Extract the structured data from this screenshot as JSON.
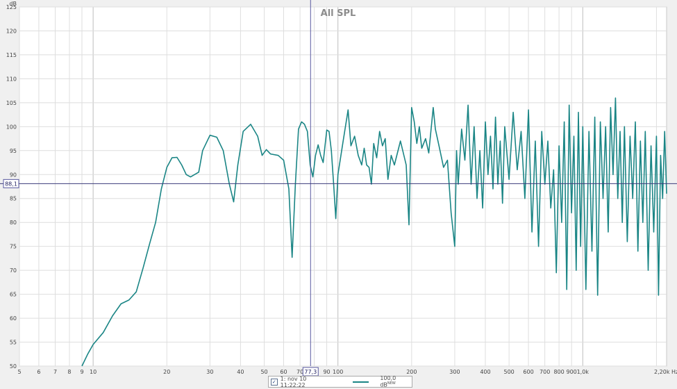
{
  "chart_data": {
    "type": "line",
    "title": "All SPL",
    "x_scale": "log",
    "xlabel": "Hz",
    "ylabel": "dB",
    "xlim": [
      5,
      2200
    ],
    "ylim": [
      50,
      125
    ],
    "grid": true,
    "x_ticks": [
      {
        "value": 5,
        "label": "5"
      },
      {
        "value": 6,
        "label": "6"
      },
      {
        "value": 7,
        "label": "7"
      },
      {
        "value": 8,
        "label": "8"
      },
      {
        "value": 9,
        "label": "9"
      },
      {
        "value": 10,
        "label": "10"
      },
      {
        "value": 20,
        "label": "20"
      },
      {
        "value": 30,
        "label": "30"
      },
      {
        "value": 40,
        "label": "40"
      },
      {
        "value": 50,
        "label": "50"
      },
      {
        "value": 60,
        "label": "60"
      },
      {
        "value": 70,
        "label": "70"
      },
      {
        "value": 90,
        "label": "90"
      },
      {
        "value": 100,
        "label": "100"
      },
      {
        "value": 200,
        "label": "200"
      },
      {
        "value": 300,
        "label": "300"
      },
      {
        "value": 400,
        "label": "400"
      },
      {
        "value": 500,
        "label": "500"
      },
      {
        "value": 600,
        "label": "600"
      },
      {
        "value": 700,
        "label": "700"
      },
      {
        "value": 800,
        "label": "800"
      },
      {
        "value": 900,
        "label": "900"
      },
      {
        "value": 1000,
        "label": "1,0k"
      },
      {
        "value": 2200,
        "label": "2,20k Hz"
      }
    ],
    "y_ticks": [
      125,
      120,
      115,
      110,
      105,
      100,
      95,
      90,
      85,
      80,
      75,
      70,
      65,
      60,
      55,
      50
    ],
    "cursor": {
      "x": 77.3,
      "x_label": "77,3",
      "y": 88.1,
      "y_label": "88,1"
    },
    "series": [
      {
        "name": "1: nov 10 11:22:22",
        "color": "#1a8585",
        "points": [
          [
            9,
            50
          ],
          [
            9.5,
            52.5
          ],
          [
            10,
            54.5
          ],
          [
            11,
            57
          ],
          [
            12,
            60.5
          ],
          [
            13,
            63
          ],
          [
            14,
            63.8
          ],
          [
            15,
            65.5
          ],
          [
            16,
            70.5
          ],
          [
            17,
            75.5
          ],
          [
            18,
            80
          ],
          [
            19,
            87
          ],
          [
            20,
            91.5
          ],
          [
            21,
            93.5
          ],
          [
            22,
            93.6
          ],
          [
            23,
            92
          ],
          [
            24,
            90
          ],
          [
            25,
            89.5
          ],
          [
            27,
            90.5
          ],
          [
            28,
            95
          ],
          [
            30,
            98.2
          ],
          [
            32,
            97.8
          ],
          [
            34,
            95
          ],
          [
            36,
            88
          ],
          [
            37.5,
            84.3
          ],
          [
            39,
            92
          ],
          [
            41,
            99
          ],
          [
            44,
            100.5
          ],
          [
            47,
            98
          ],
          [
            49,
            94
          ],
          [
            51,
            95.2
          ],
          [
            53,
            94.3
          ],
          [
            57,
            94
          ],
          [
            60,
            93
          ],
          [
            63,
            87
          ],
          [
            65,
            72.7
          ],
          [
            67,
            88
          ],
          [
            69,
            99.5
          ],
          [
            71,
            101
          ],
          [
            73,
            100.5
          ],
          [
            75,
            99
          ],
          [
            77,
            92
          ],
          [
            79,
            89.5
          ],
          [
            81,
            94
          ],
          [
            83,
            96.2
          ],
          [
            85,
            94
          ],
          [
            87,
            92.5
          ],
          [
            90,
            99.3
          ],
          [
            92,
            99
          ],
          [
            94,
            95
          ],
          [
            96,
            88
          ],
          [
            98,
            80.8
          ],
          [
            100,
            90
          ],
          [
            105,
            97
          ],
          [
            110,
            103.5
          ],
          [
            113,
            96
          ],
          [
            117,
            98
          ],
          [
            121,
            94
          ],
          [
            125,
            92
          ],
          [
            128,
            95.5
          ],
          [
            131,
            92
          ],
          [
            134,
            91.5
          ],
          [
            137,
            88
          ],
          [
            140,
            96.5
          ],
          [
            144,
            93.5
          ],
          [
            148,
            99
          ],
          [
            152,
            96
          ],
          [
            156,
            97.5
          ],
          [
            160,
            89
          ],
          [
            165,
            94
          ],
          [
            170,
            92
          ],
          [
            180,
            97
          ],
          [
            190,
            92
          ],
          [
            195,
            79.5
          ],
          [
            200,
            104
          ],
          [
            205,
            101
          ],
          [
            210,
            96.5
          ],
          [
            215,
            100
          ],
          [
            220,
            95.5
          ],
          [
            228,
            97.5
          ],
          [
            235,
            94.5
          ],
          [
            245,
            104
          ],
          [
            250,
            99.5
          ],
          [
            260,
            95.5
          ],
          [
            270,
            91.5
          ],
          [
            280,
            93
          ],
          [
            290,
            82
          ],
          [
            300,
            75
          ],
          [
            305,
            95
          ],
          [
            310,
            88
          ],
          [
            320,
            99.5
          ],
          [
            330,
            93
          ],
          [
            340,
            104.5
          ],
          [
            350,
            88
          ],
          [
            360,
            100
          ],
          [
            370,
            85
          ],
          [
            380,
            95
          ],
          [
            390,
            83
          ],
          [
            400,
            101
          ],
          [
            410,
            90
          ],
          [
            420,
            98
          ],
          [
            430,
            87
          ],
          [
            440,
            102
          ],
          [
            450,
            88
          ],
          [
            460,
            97
          ],
          [
            470,
            84
          ],
          [
            480,
            100
          ],
          [
            500,
            89
          ],
          [
            520,
            103
          ],
          [
            540,
            91
          ],
          [
            560,
            99
          ],
          [
            580,
            85
          ],
          [
            600,
            103.5
          ],
          [
            620,
            78
          ],
          [
            640,
            97
          ],
          [
            660,
            75
          ],
          [
            680,
            99
          ],
          [
            700,
            88
          ],
          [
            720,
            97
          ],
          [
            740,
            83
          ],
          [
            760,
            91
          ],
          [
            780,
            69.5
          ],
          [
            800,
            96
          ],
          [
            820,
            80
          ],
          [
            840,
            101
          ],
          [
            860,
            66
          ],
          [
            880,
            104.5
          ],
          [
            900,
            82
          ],
          [
            920,
            98
          ],
          [
            940,
            70
          ],
          [
            960,
            103
          ],
          [
            980,
            75
          ],
          [
            1000,
            100
          ],
          [
            1030,
            66
          ],
          [
            1060,
            99
          ],
          [
            1090,
            74
          ],
          [
            1120,
            102
          ],
          [
            1150,
            64.8
          ],
          [
            1180,
            101
          ],
          [
            1210,
            85
          ],
          [
            1240,
            100
          ],
          [
            1270,
            78
          ],
          [
            1300,
            104
          ],
          [
            1330,
            90
          ],
          [
            1360,
            106
          ],
          [
            1390,
            85
          ],
          [
            1420,
            99
          ],
          [
            1450,
            80
          ],
          [
            1480,
            100
          ],
          [
            1520,
            76
          ],
          [
            1560,
            98
          ],
          [
            1600,
            85
          ],
          [
            1640,
            101
          ],
          [
            1680,
            74
          ],
          [
            1720,
            97
          ],
          [
            1760,
            80
          ],
          [
            1800,
            99
          ],
          [
            1850,
            70
          ],
          [
            1900,
            96
          ],
          [
            1950,
            78
          ],
          [
            2000,
            98
          ],
          [
            2040,
            64.8
          ],
          [
            2080,
            94
          ],
          [
            2120,
            85
          ],
          [
            2160,
            99
          ],
          [
            2200,
            86
          ]
        ]
      }
    ]
  },
  "legend": {
    "checkbox_mark": "✓",
    "series_label": "1: nov 10 11:22:22",
    "value_label": "100,0 dB",
    "value_superscript": "NEW"
  }
}
